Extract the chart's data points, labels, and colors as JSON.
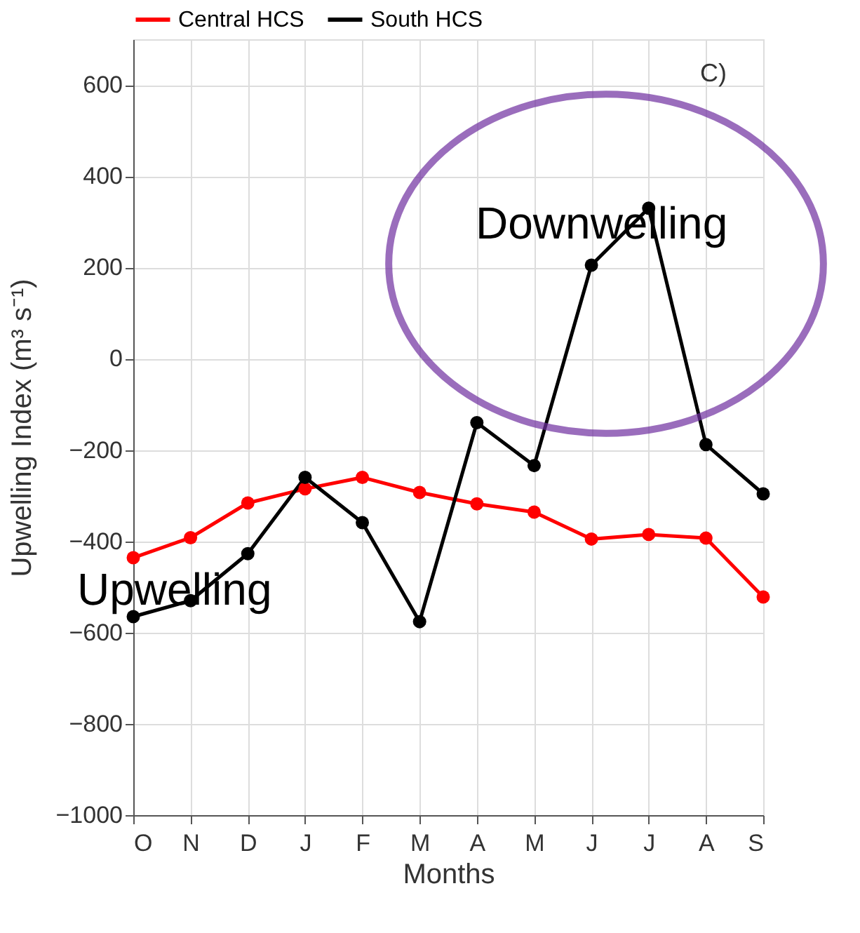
{
  "chart_data": {
    "type": "line",
    "xlabel": "Months",
    "ylabel": "Upwelling Index (m³ s⁻¹)",
    "categories": [
      "O",
      "N",
      "D",
      "J",
      "F",
      "M",
      "A",
      "M",
      "J",
      "J",
      "A",
      "S"
    ],
    "series": [
      {
        "name": "Central HCS",
        "color": "#ff0000",
        "values": [
          -436,
          -392,
          -316,
          -285,
          -260,
          -293,
          -318,
          -336,
          -395,
          -385,
          -393,
          -522
        ]
      },
      {
        "name": "South HCS",
        "color": "#000000",
        "values": [
          -565,
          -530,
          -427,
          -260,
          -359,
          -576,
          -140,
          -234,
          205,
          330,
          -188,
          -296
        ]
      }
    ],
    "ylim": [
      -1000,
      700
    ],
    "yticks": [
      -1000,
      -800,
      -600,
      -400,
      -200,
      0,
      200,
      400,
      600
    ],
    "grid": true,
    "legend": "top",
    "marker": "circle",
    "line_style": "solid",
    "annotations": [
      "C)",
      "Upwelling",
      "Downwelling"
    ]
  }
}
